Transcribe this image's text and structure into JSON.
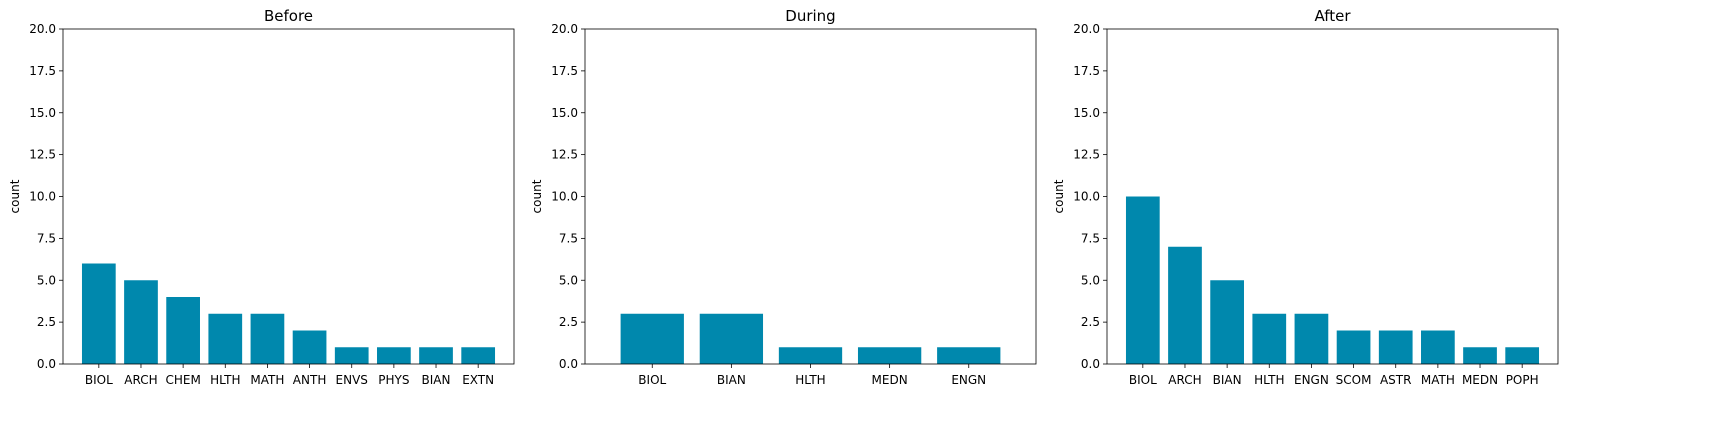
{
  "bar_color": "#0088ad",
  "chart_data": [
    {
      "type": "bar",
      "title": "Before",
      "ylabel": "count",
      "xlabel": "",
      "ylim": [
        0,
        20
      ],
      "yticks": [
        "0.0",
        "2.5",
        "5.0",
        "7.5",
        "10.0",
        "12.5",
        "15.0",
        "17.5",
        "20.0"
      ],
      "categories": [
        "BIOL",
        "ARCH",
        "CHEM",
        "HLTH",
        "MATH",
        "ANTH",
        "ENVS",
        "PHYS",
        "BIAN",
        "EXTN"
      ],
      "values": [
        6,
        5,
        4,
        3,
        3,
        2,
        1,
        1,
        1,
        1
      ]
    },
    {
      "type": "bar",
      "title": "During",
      "ylabel": "count",
      "xlabel": "",
      "ylim": [
        0,
        20
      ],
      "yticks": [
        "0.0",
        "2.5",
        "5.0",
        "7.5",
        "10.0",
        "12.5",
        "15.0",
        "17.5",
        "20.0"
      ],
      "categories": [
        "BIOL",
        "BIAN",
        "HLTH",
        "MEDN",
        "ENGN"
      ],
      "values": [
        3,
        3,
        1,
        1,
        1
      ]
    },
    {
      "type": "bar",
      "title": "After",
      "ylabel": "count",
      "xlabel": "",
      "ylim": [
        0,
        20
      ],
      "yticks": [
        "0.0",
        "2.5",
        "5.0",
        "7.5",
        "10.0",
        "12.5",
        "15.0",
        "17.5",
        "20.0"
      ],
      "categories": [
        "BIOL",
        "ARCH",
        "BIAN",
        "HLTH",
        "ENGN",
        "SCOM",
        "ASTR",
        "MATH",
        "MEDN",
        "POPH"
      ],
      "values": [
        10,
        7,
        5,
        3,
        3,
        2,
        2,
        2,
        1,
        1
      ]
    }
  ]
}
